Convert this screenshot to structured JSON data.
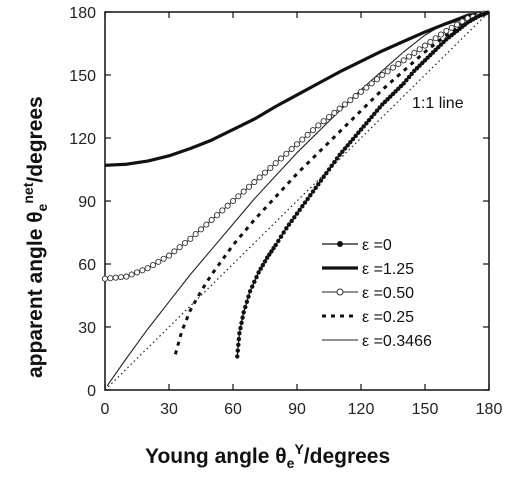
{
  "chart_data": {
    "type": "line",
    "xlabel": {
      "main": "Young angle θ",
      "sub": "e",
      "sup": "Y",
      "unit": "/degrees"
    },
    "ylabel": {
      "main": "apparent angle θ",
      "sub": "e",
      "sup": "net",
      "unit": "/degrees"
    },
    "xlim": [
      0,
      180
    ],
    "ylim": [
      0,
      180
    ],
    "xticks": [
      0,
      30,
      60,
      90,
      120,
      150,
      180
    ],
    "yticks": [
      0,
      30,
      60,
      90,
      120,
      150,
      180
    ],
    "grid": false,
    "legend_position": "bottom-right",
    "annotations": [
      {
        "text": "1:1 line"
      }
    ],
    "series": [
      {
        "name": "ε =0",
        "style": "dot-line",
        "x": [
          62,
          63,
          65,
          68,
          72,
          76,
          80,
          85,
          90,
          95,
          100,
          105,
          110,
          115,
          120,
          125,
          130,
          135,
          140,
          145,
          150,
          155,
          160,
          165,
          170,
          175,
          180
        ],
        "y": [
          16,
          27,
          37,
          47,
          56,
          63,
          69,
          77,
          84,
          91,
          98,
          105,
          112,
          118,
          124,
          130,
          136,
          141,
          146,
          152,
          157,
          162,
          167,
          171,
          175,
          178,
          180
        ]
      },
      {
        "name": "ε =1.25",
        "style": "thick",
        "x": [
          0,
          10,
          20,
          30,
          40,
          50,
          60,
          70,
          80,
          90,
          100,
          110,
          120,
          130,
          140,
          150,
          160,
          170,
          180
        ],
        "y": [
          107,
          107.5,
          109,
          111.5,
          115,
          119,
          124,
          129,
          135,
          140.5,
          146,
          151.5,
          156.5,
          161.5,
          166,
          170.5,
          174.5,
          178,
          180
        ]
      },
      {
        "name": "ε =0.50",
        "style": "circles",
        "x": [
          0,
          10,
          20,
          30,
          40,
          50,
          60,
          70,
          80,
          90,
          100,
          110,
          120,
          130,
          140,
          150,
          160,
          170,
          180
        ],
        "y": [
          53,
          54,
          58,
          64,
          72,
          81,
          90,
          99,
          108,
          117,
          126,
          134,
          142,
          150,
          157,
          164,
          171,
          177,
          180
        ]
      },
      {
        "name": "ε =0.25",
        "style": "dashed",
        "x": [
          33,
          36,
          40,
          45,
          50,
          55,
          60,
          70,
          80,
          90,
          100,
          110,
          120,
          130,
          140,
          150,
          160,
          170,
          180
        ],
        "y": [
          17,
          28,
          38,
          47,
          55,
          62,
          69,
          81,
          92,
          103,
          113,
          123,
          133,
          143,
          152,
          161,
          169,
          176,
          180
        ]
      },
      {
        "name": "ε =0.3466",
        "style": "thin",
        "x": [
          1,
          10,
          20,
          30,
          40,
          50,
          60,
          70,
          80,
          90,
          100,
          110,
          120,
          130,
          140,
          150,
          160,
          170,
          180
        ],
        "y": [
          2,
          15,
          29,
          42,
          55,
          67,
          79,
          91,
          102,
          113,
          123,
          133,
          143,
          152,
          161,
          169,
          175,
          179,
          180
        ]
      },
      {
        "name": "1:1 line",
        "style": "dotted",
        "in_legend": false,
        "x": [
          0,
          180
        ],
        "y": [
          0,
          180
        ]
      }
    ]
  }
}
